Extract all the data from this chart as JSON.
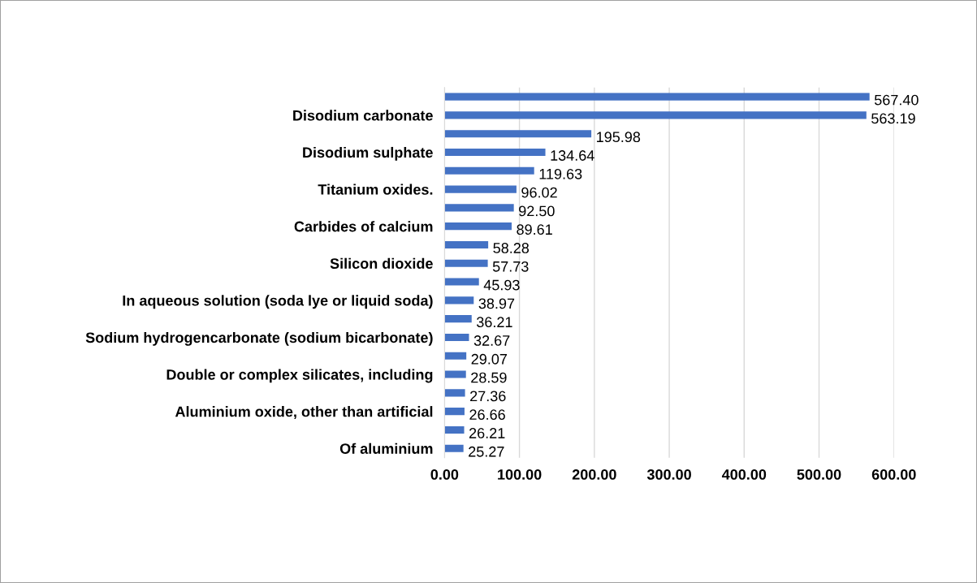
{
  "chart_data": {
    "type": "bar",
    "orientation": "horizontal",
    "categories": [
      null,
      "Disodium carbonate",
      null,
      "Disodium sulphate",
      null,
      "Titanium oxides.",
      null,
      "Carbides of calcium",
      null,
      "Silicon dioxide",
      null,
      "In aqueous solution (soda lye or liquid soda)",
      null,
      "Sodium hydrogencarbonate (sodium bicarbonate)",
      null,
      "Double or complex silicates, including",
      null,
      "Aluminium oxide, other than artificial",
      null,
      "Of aluminium"
    ],
    "values": [
      567.4,
      563.19,
      195.98,
      134.64,
      119.63,
      96.02,
      92.5,
      89.61,
      58.28,
      57.73,
      45.93,
      38.97,
      36.21,
      32.67,
      29.07,
      28.59,
      27.36,
      26.66,
      26.21,
      25.27
    ],
    "color": "#4472c4",
    "xlim": [
      0,
      600
    ],
    "xticks": [
      {
        "value": 0,
        "label": "0.00"
      },
      {
        "value": 100,
        "label": "100.00"
      },
      {
        "value": 200,
        "label": "200.00"
      },
      {
        "value": 300,
        "label": "300.00"
      },
      {
        "value": 400,
        "label": "400.00"
      },
      {
        "value": 500,
        "label": "500.00"
      },
      {
        "value": 600,
        "label": "600.00"
      }
    ],
    "value_labels": [
      "567.40",
      "563.19",
      "195.98",
      "134.64",
      "119.63",
      "96.02",
      "92.50",
      "89.61",
      "58.28",
      "57.73",
      "45.93",
      "38.97",
      "36.21",
      "32.67",
      "29.07",
      "28.59",
      "27.36",
      "26.66",
      "26.21",
      "25.27"
    ],
    "grid": "x",
    "legend": false
  }
}
